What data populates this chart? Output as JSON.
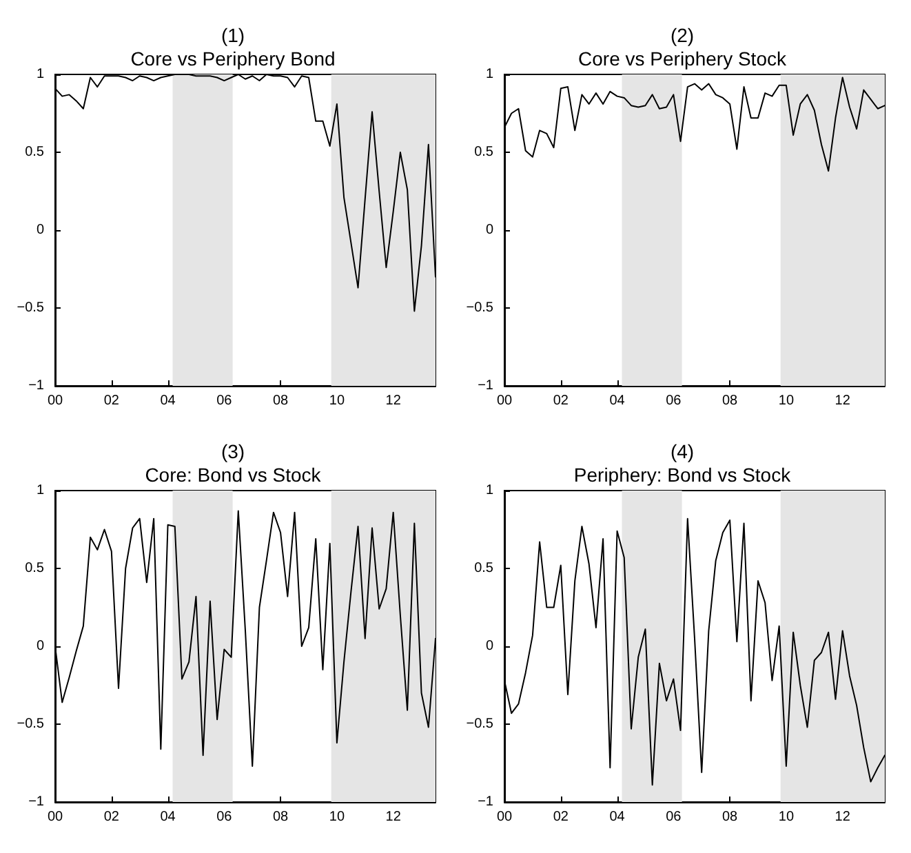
{
  "chart_data": [
    {
      "type": "line",
      "title": "(1)\nCore vs Periphery Bond",
      "color": "#000000",
      "marker": "none",
      "line_style": "solid",
      "grid": false,
      "x": [
        0,
        0.25,
        0.5,
        0.75,
        1,
        1.25,
        1.5,
        1.75,
        2,
        2.25,
        2.5,
        2.75,
        3,
        3.25,
        3.5,
        3.75,
        4,
        4.25,
        4.5,
        4.75,
        5,
        5.25,
        5.5,
        5.75,
        6,
        6.25,
        6.5,
        6.75,
        7,
        7.25,
        7.5,
        7.75,
        8,
        8.25,
        8.5,
        8.75,
        9,
        9.25,
        9.5,
        9.75,
        10,
        10.25,
        10.5,
        10.75,
        11,
        11.25,
        11.5,
        11.75,
        12,
        12.25,
        12.5,
        12.75,
        13,
        13.25,
        13.5
      ],
      "values": [
        0.91,
        0.86,
        0.87,
        0.83,
        0.78,
        0.98,
        0.92,
        0.99,
        0.99,
        0.99,
        0.98,
        0.96,
        0.99,
        0.98,
        0.96,
        0.98,
        0.99,
        1,
        1,
        1,
        0.99,
        0.99,
        0.99,
        0.98,
        0.96,
        0.98,
        1,
        0.97,
        0.99,
        0.96,
        1,
        0.99,
        0.99,
        0.98,
        0.92,
        0.99,
        0.98,
        0.7,
        0.7,
        0.54,
        0.81,
        0.21,
        -0.08,
        -0.37,
        0.2,
        0.76,
        0.25,
        -0.24,
        0.12,
        0.5,
        0.26,
        -0.52,
        -0.1,
        0.55,
        -0.3
      ],
      "xlim": [
        0,
        13.5
      ],
      "xticks": [
        {
          "value": 0,
          "label": "00"
        },
        {
          "value": 2,
          "label": "02"
        },
        {
          "value": 4,
          "label": "04"
        },
        {
          "value": 6,
          "label": "06"
        },
        {
          "value": 8,
          "label": "08"
        },
        {
          "value": 10,
          "label": "10"
        },
        {
          "value": 12,
          "label": "12"
        }
      ],
      "ylim": [
        -1,
        1
      ],
      "yticks": [
        -1,
        -0.5,
        0,
        0.5,
        1
      ],
      "bands": [
        {
          "axis": "x",
          "from": 4.17,
          "to": 6.3,
          "color": "#e5e5e5"
        },
        {
          "axis": "x",
          "from": 9.8,
          "to": 13.5,
          "color": "#e5e5e5"
        }
      ]
    },
    {
      "type": "line",
      "title": "(2)\nCore vs Periphery Stock",
      "color": "#000000",
      "marker": "none",
      "line_style": "solid",
      "grid": false,
      "x": [
        0,
        0.25,
        0.5,
        0.75,
        1,
        1.25,
        1.5,
        1.75,
        2,
        2.25,
        2.5,
        2.75,
        3,
        3.25,
        3.5,
        3.75,
        4,
        4.25,
        4.5,
        4.75,
        5,
        5.25,
        5.5,
        5.75,
        6,
        6.25,
        6.5,
        6.75,
        7,
        7.25,
        7.5,
        7.75,
        8,
        8.25,
        8.5,
        8.75,
        9,
        9.25,
        9.5,
        9.75,
        10,
        10.25,
        10.5,
        10.75,
        11,
        11.25,
        11.5,
        11.75,
        12,
        12.25,
        12.5,
        12.75,
        13,
        13.25,
        13.5
      ],
      "values": [
        0.66,
        0.75,
        0.78,
        0.51,
        0.47,
        0.64,
        0.62,
        0.53,
        0.91,
        0.92,
        0.64,
        0.87,
        0.81,
        0.88,
        0.81,
        0.89,
        0.86,
        0.85,
        0.8,
        0.79,
        0.8,
        0.87,
        0.78,
        0.79,
        0.87,
        0.57,
        0.92,
        0.94,
        0.9,
        0.94,
        0.87,
        0.85,
        0.81,
        0.52,
        0.92,
        0.72,
        0.72,
        0.88,
        0.86,
        0.93,
        0.93,
        0.61,
        0.81,
        0.87,
        0.77,
        0.55,
        0.38,
        0.72,
        0.98,
        0.79,
        0.65,
        0.9,
        0.84,
        0.78,
        0.8
      ],
      "xlim": [
        0,
        13.5
      ],
      "xticks": [
        {
          "value": 0,
          "label": "00"
        },
        {
          "value": 2,
          "label": "02"
        },
        {
          "value": 4,
          "label": "04"
        },
        {
          "value": 6,
          "label": "06"
        },
        {
          "value": 8,
          "label": "08"
        },
        {
          "value": 10,
          "label": "10"
        },
        {
          "value": 12,
          "label": "12"
        }
      ],
      "ylim": [
        -1,
        1
      ],
      "yticks": [
        -1,
        -0.5,
        0,
        0.5,
        1
      ],
      "bands": [
        {
          "axis": "x",
          "from": 4.17,
          "to": 6.3,
          "color": "#e5e5e5"
        },
        {
          "axis": "x",
          "from": 9.8,
          "to": 13.5,
          "color": "#e5e5e5"
        }
      ]
    },
    {
      "type": "line",
      "title": "(3)\nCore: Bond vs Stock",
      "color": "#000000",
      "marker": "none",
      "line_style": "solid",
      "grid": false,
      "x": [
        0,
        0.25,
        0.5,
        0.75,
        1,
        1.25,
        1.5,
        1.75,
        2,
        2.25,
        2.5,
        2.75,
        3,
        3.25,
        3.5,
        3.75,
        4,
        4.25,
        4.5,
        4.75,
        5,
        5.25,
        5.5,
        5.75,
        6,
        6.25,
        6.5,
        6.75,
        7,
        7.25,
        7.5,
        7.75,
        8,
        8.25,
        8.5,
        8.75,
        9,
        9.25,
        9.5,
        9.75,
        10,
        10.25,
        10.5,
        10.75,
        11,
        11.25,
        11.5,
        11.75,
        12,
        12.25,
        12.5,
        12.75,
        13,
        13.25,
        13.5
      ],
      "values": [
        0,
        -0.36,
        -0.2,
        -0.03,
        0.13,
        0.7,
        0.62,
        0.75,
        0.61,
        -0.27,
        0.5,
        0.76,
        0.82,
        0.41,
        0.82,
        -0.66,
        0.78,
        0.77,
        -0.21,
        -0.1,
        0.32,
        -0.7,
        0.29,
        -0.47,
        -0.02,
        -0.07,
        0.87,
        0.1,
        -0.77,
        0.25,
        0.55,
        0.86,
        0.73,
        0.32,
        0.86,
        0,
        0.12,
        0.69,
        -0.15,
        0.66,
        -0.62,
        -0.1,
        0.35,
        0.77,
        0.05,
        0.76,
        0.24,
        0.37,
        0.86,
        0.2,
        -0.41,
        0.79,
        -0.3,
        -0.52,
        0.05
      ],
      "xlim": [
        0,
        13.5
      ],
      "xticks": [
        {
          "value": 0,
          "label": "00"
        },
        {
          "value": 2,
          "label": "02"
        },
        {
          "value": 4,
          "label": "04"
        },
        {
          "value": 6,
          "label": "06"
        },
        {
          "value": 8,
          "label": "08"
        },
        {
          "value": 10,
          "label": "10"
        },
        {
          "value": 12,
          "label": "12"
        }
      ],
      "ylim": [
        -1,
        1
      ],
      "yticks": [
        -1,
        -0.5,
        0,
        0.5,
        1
      ],
      "bands": [
        {
          "axis": "x",
          "from": 4.17,
          "to": 6.3,
          "color": "#e5e5e5"
        },
        {
          "axis": "x",
          "from": 9.8,
          "to": 13.5,
          "color": "#e5e5e5"
        }
      ]
    },
    {
      "type": "line",
      "title": "(4)\nPeriphery: Bond vs Stock",
      "color": "#000000",
      "marker": "none",
      "line_style": "solid",
      "grid": false,
      "x": [
        0,
        0.25,
        0.5,
        0.75,
        1,
        1.25,
        1.5,
        1.75,
        2,
        2.25,
        2.5,
        2.75,
        3,
        3.25,
        3.5,
        3.75,
        4,
        4.25,
        4.5,
        4.75,
        5,
        5.25,
        5.5,
        5.75,
        6,
        6.25,
        6.5,
        6.75,
        7,
        7.25,
        7.5,
        7.75,
        8,
        8.25,
        8.5,
        8.75,
        9,
        9.25,
        9.5,
        9.75,
        10,
        10.25,
        10.5,
        10.75,
        11,
        11.25,
        11.5,
        11.75,
        12,
        12.25,
        12.5,
        12.75,
        13,
        13.25,
        13.5
      ],
      "values": [
        -0.22,
        -0.43,
        -0.37,
        -0.17,
        0.07,
        0.67,
        0.25,
        0.25,
        0.52,
        -0.31,
        0.42,
        0.77,
        0.53,
        0.12,
        0.69,
        -0.78,
        0.74,
        0.57,
        -0.53,
        -0.07,
        0.11,
        -0.89,
        -0.11,
        -0.35,
        -0.21,
        -0.54,
        0.82,
        0.05,
        -0.81,
        0.1,
        0.55,
        0.73,
        0.81,
        0.03,
        0.79,
        -0.35,
        0.42,
        0.28,
        -0.22,
        0.13,
        -0.77,
        0.09,
        -0.25,
        -0.52,
        -0.09,
        -0.04,
        0.09,
        -0.34,
        0.1,
        -0.19,
        -0.38,
        -0.65,
        -0.87,
        -0.78,
        -0.7
      ],
      "xlim": [
        0,
        13.5
      ],
      "xticks": [
        {
          "value": 0,
          "label": "00"
        },
        {
          "value": 2,
          "label": "02"
        },
        {
          "value": 4,
          "label": "04"
        },
        {
          "value": 6,
          "label": "06"
        },
        {
          "value": 8,
          "label": "08"
        },
        {
          "value": 10,
          "label": "10"
        },
        {
          "value": 12,
          "label": "12"
        }
      ],
      "ylim": [
        -1,
        1
      ],
      "yticks": [
        -1,
        -0.5,
        0,
        0.5,
        1
      ],
      "bands": [
        {
          "axis": "x",
          "from": 4.17,
          "to": 6.3,
          "color": "#e5e5e5"
        },
        {
          "axis": "x",
          "from": 9.8,
          "to": 13.5,
          "color": "#e5e5e5"
        }
      ]
    }
  ]
}
